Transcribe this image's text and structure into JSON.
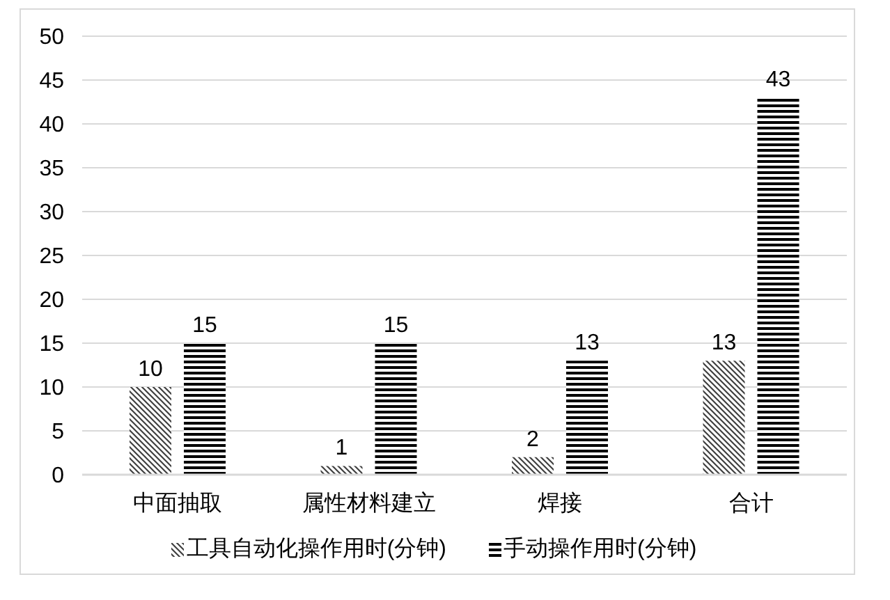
{
  "chart_data": {
    "type": "bar",
    "categories": [
      "中面抽取",
      "属性材料建立",
      "焊接",
      "合计"
    ],
    "series": [
      {
        "name": "工具自动化操作用时(分钟)",
        "color": "#404040",
        "values": [
          10,
          1,
          2,
          13
        ]
      },
      {
        "name": "手动操作用时(分钟)",
        "color": "#000000",
        "values": [
          15,
          15,
          13,
          43
        ]
      }
    ],
    "ylim": [
      0,
      50
    ],
    "yticks": [
      0,
      5,
      10,
      15,
      20,
      25,
      30,
      35,
      40,
      45,
      50
    ],
    "grid": "y",
    "legend": "bottom",
    "data_labels": true
  }
}
